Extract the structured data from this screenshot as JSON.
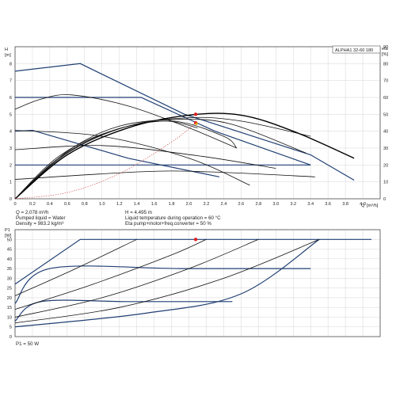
{
  "chart_data": [
    {
      "type": "line",
      "model": "ALPHA1 32-60 180",
      "ylabel": "H",
      "yunit": "[m]",
      "ylabel_right": "eta",
      "yunit_right": "[%]",
      "xlabel": "Q",
      "xunit": "[m³/h]",
      "xlim": [
        0,
        4.2
      ],
      "ylim": [
        0,
        9
      ],
      "ylim_right": [
        0,
        90
      ],
      "x_ticks": [
        "0",
        "0.2",
        "0.4",
        "0.6",
        "0.8",
        "1.0",
        "1.2",
        "1.4",
        "1.6",
        "1.8",
        "2.0",
        "2.2",
        "2.4",
        "2.6",
        "2.8",
        "3.0",
        "3.2",
        "3.4",
        "3.6",
        "3.8",
        "4.0"
      ],
      "y_ticks": [
        "0",
        "1",
        "2",
        "3",
        "4",
        "5",
        "6",
        "7",
        "8"
      ],
      "y_ticks_right": [
        "0",
        "10",
        "20",
        "30",
        "40",
        "50",
        "60",
        "70",
        "80",
        "90"
      ],
      "grid": true,
      "head_series": [
        {
          "style": "blue",
          "x": [
            0,
            0.75,
            1.95,
            3.4,
            3.9
          ],
          "y": [
            7.55,
            8.0,
            5.0,
            2.6,
            1.1
          ]
        },
        {
          "style": "blue",
          "x": [
            0,
            1.45,
            2.3,
            3.4
          ],
          "y": [
            6.0,
            6.0,
            4.0,
            2.0
          ]
        },
        {
          "style": "blue",
          "x": [
            0,
            0.2,
            1.3,
            2.35
          ],
          "y": [
            4.0,
            4.05,
            2.4,
            1.3
          ]
        },
        {
          "style": "blue",
          "x": [
            0,
            0.55,
            3.4
          ],
          "y": [
            2.0,
            2.0,
            2.0
          ]
        },
        {
          "style": "dark",
          "x": [
            0,
            0.3,
            0.65,
            1.3,
            2.0,
            2.55
          ],
          "y": [
            5.3,
            5.9,
            6.15,
            5.5,
            4.2,
            3.0
          ]
        },
        {
          "style": "dark",
          "x": [
            0,
            1.0,
            2.0,
            2.7
          ],
          "y": [
            4.05,
            3.7,
            2.4,
            0.8
          ]
        },
        {
          "style": "dark",
          "x": [
            0,
            1.0,
            2.1,
            3.0
          ],
          "y": [
            2.9,
            3.15,
            2.55,
            1.8
          ]
        },
        {
          "style": "dark",
          "x": [
            0,
            1.45,
            2.2,
            3.45
          ],
          "y": [
            1.15,
            1.6,
            1.6,
            1.3
          ]
        }
      ],
      "eta_series": [
        {
          "style": "black",
          "x": [
            0,
            0.6,
            1.3,
            2.0,
            2.6,
            3.2,
            3.9
          ],
          "y": [
            0,
            26,
            42,
            49.5,
            49.5,
            40,
            24
          ]
        },
        {
          "style": "dark",
          "x": [
            0,
            0.6,
            1.3,
            2.0,
            2.6,
            3.4
          ],
          "y": [
            0,
            27,
            43,
            48,
            46,
            37
          ]
        },
        {
          "style": "dark",
          "x": [
            0,
            0.6,
            1.2,
            1.9,
            2.5,
            3.35
          ],
          "y": [
            0,
            28,
            43,
            47,
            44,
            27
          ]
        },
        {
          "style": "dark",
          "x": [
            0,
            0.5,
            1.1,
            1.8,
            2.4,
            2.55
          ],
          "y": [
            0,
            25,
            40,
            46,
            37,
            30
          ]
        },
        {
          "style": "dark",
          "x": [
            0,
            0.5,
            1.1,
            1.7,
            2.1
          ],
          "y": [
            0,
            24,
            40,
            46,
            42
          ]
        }
      ],
      "system_curve": {
        "x": [
          0,
          0.6,
          1.2,
          1.8,
          2.08
        ],
        "y": [
          0,
          0.37,
          1.49,
          3.36,
          4.495
        ]
      },
      "duty_point": {
        "Q": 2.078,
        "H": 4.495,
        "eta": 50
      },
      "colors": {
        "frame": "#4a4a4a",
        "grid": "#d6d6d6",
        "blue": "#1f3f73",
        "dark": "#111111",
        "black": "#000000",
        "system": "#d04040",
        "duty_head": "#e02020",
        "duty_eta": "#e0a000"
      }
    },
    {
      "type": "line",
      "ylabel": "P1",
      "yunit": "[W]",
      "xlim": [
        0,
        4.2
      ],
      "ylim": [
        0,
        55
      ],
      "y_ticks": [
        "0",
        "5",
        "10",
        "15",
        "20",
        "25",
        "30",
        "35",
        "40",
        "45",
        "50"
      ],
      "grid": true,
      "power_series": [
        {
          "style": "blue",
          "x": [
            0,
            0.75,
            4.1
          ],
          "y": [
            27,
            50,
            50
          ]
        },
        {
          "style": "blue",
          "x": [
            0,
            0.4,
            1.9,
            3.4
          ],
          "y": [
            17,
            35,
            35,
            35
          ]
        },
        {
          "style": "blue",
          "x": [
            0,
            0.3,
            1.3,
            2.5
          ],
          "y": [
            8,
            18,
            18,
            18
          ]
        },
        {
          "style": "blue",
          "x": [
            0,
            1.5,
            2.6,
            3.5
          ],
          "y": [
            5,
            12,
            22,
            50
          ]
        },
        {
          "style": "dark",
          "x": [
            0,
            0.7,
            1.4
          ],
          "y": [
            21,
            35,
            50
          ]
        },
        {
          "style": "dark",
          "x": [
            0,
            0.9,
            1.8,
            2.2
          ],
          "y": [
            14,
            27,
            42,
            50
          ]
        },
        {
          "style": "dark",
          "x": [
            0,
            1.0,
            2.0,
            2.8
          ],
          "y": [
            10,
            20,
            35,
            50
          ]
        },
        {
          "style": "dark",
          "x": [
            0,
            1.2,
            2.4,
            3.5
          ],
          "y": [
            7,
            15,
            30,
            50
          ]
        }
      ],
      "duty_point": {
        "Q": 2.078,
        "P1": 50
      },
      "colors": {
        "duty": "#e02020"
      }
    }
  ],
  "info": {
    "flow": "Q = 2,078 m³/h",
    "head": "H = 4.495 m",
    "liquid": "Pumped liquid = Water",
    "temp": "Liquid temperature during operation = 60 °C",
    "density": "Density = 983.2 kg/m³",
    "eta_text": "Eta pump+motor+freq.converter = 50 %",
    "p1": "P1 = 50 W"
  }
}
